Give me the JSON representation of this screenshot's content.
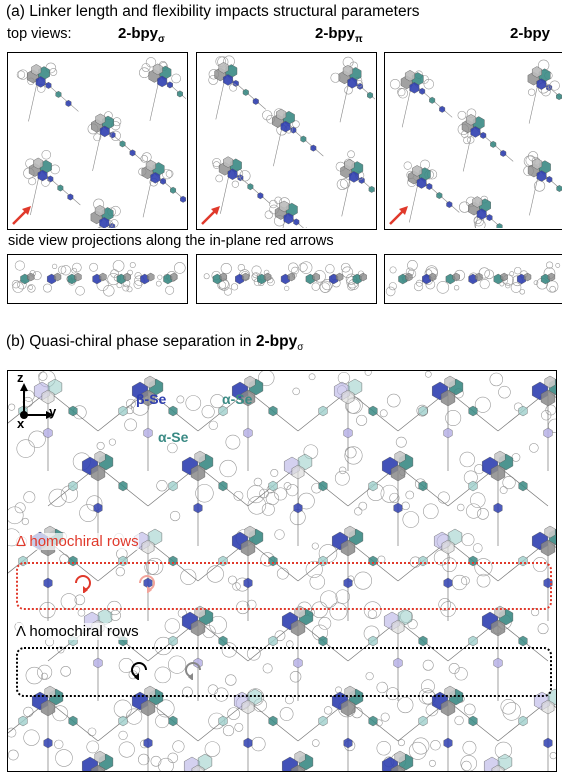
{
  "panel_a": {
    "heading": "(a) Linker length and flexibility impacts structural parameters",
    "top_views_label": "top views:",
    "panels": [
      {
        "name": "2-bpy",
        "sub": "σ"
      },
      {
        "name": "2-bpy",
        "sub": "π"
      },
      {
        "name": "2-bpy",
        "sub": ""
      }
    ],
    "side_label": "side view projections along the in-plane red arrows"
  },
  "panel_b": {
    "heading_prefix": "(b) Quasi-chiral phase separation in ",
    "heading_bold": "2-bpy",
    "heading_sub": "σ",
    "axes": {
      "z": "z",
      "y": "y",
      "x": "x"
    },
    "labels": {
      "beta": "β-Se",
      "alpha1": "α-Se",
      "alpha2": "α-Se"
    },
    "delta_rows": "Δ homochiral rows",
    "lambda_rows": "Λ homochiral rows"
  },
  "colors": {
    "dark_blue": "#2f3fb0",
    "teal": "#3a8a84",
    "light_teal": "#9fd0cc",
    "lavender": "#b7b2e6",
    "gray": "#8a8a8a",
    "red": "#e0392b"
  }
}
